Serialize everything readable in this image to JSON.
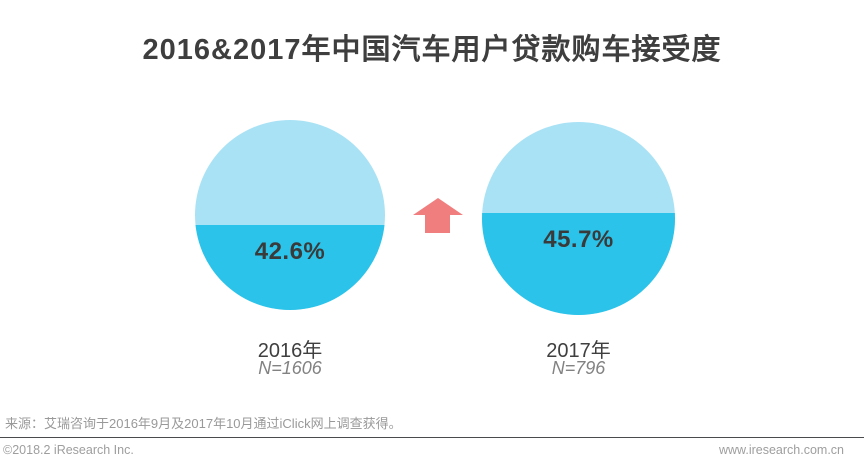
{
  "title": "2016&2017年中国汽车用户贷款购车接受度",
  "chart_data": {
    "type": "liquid-fill-circle-comparison",
    "description": "Two water-fill circles comparing loan-based car purchase acceptance among Chinese auto users",
    "series": [
      {
        "label": "2016年",
        "sample_size": "N=1606",
        "value_pct": 42.6,
        "value_label": "42.6%",
        "fill_fraction": 0.45
      },
      {
        "label": "2017年",
        "sample_size": "N=796",
        "value_pct": 45.7,
        "value_label": "45.7%",
        "fill_fraction": 0.53
      }
    ],
    "trend": "up",
    "legend": "none",
    "colors": {
      "circle_top": "#A9E2F5",
      "circle_fill": "#2BC3E9",
      "arrow": "#F17E7E",
      "value_text": "#3A3A3A"
    }
  },
  "source_note": "来源：艾瑞咨询于2016年9月及2017年10月通过iClick网上调查获得。",
  "footer": {
    "left": "©2018.2 iResearch Inc.",
    "right": "www.iresearch.com.cn"
  }
}
